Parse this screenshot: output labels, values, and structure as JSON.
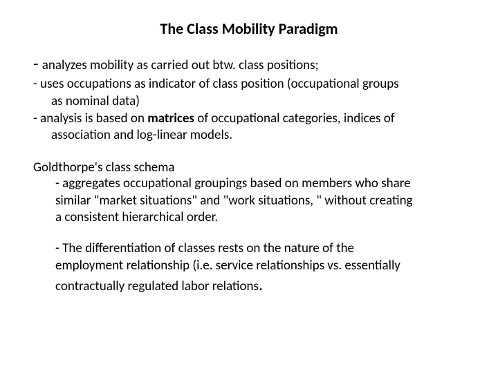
{
  "title": "The Class Mobility Paradigm",
  "point1_pre": "- ",
  "point1": "analyzes mobility as carried out btw. class positions;",
  "point2_line1": "- uses occupations as indicator of class position (occupational groups",
  "point2_line2": "as nominal data)",
  "point3_line1_pre": "- analysis is based on ",
  "point3_line1_bold": "matrices",
  "point3_line1_post": " of occupational categories, indices of",
  "point3_line2": "association and log-linear models.",
  "schema_title": "Goldthorpe's class schema",
  "schema1_line1": "- aggregates occupational groupings based on members who share",
  "schema1_line2": "similar \"market situations\" and \"work situations, \" without creating",
  "schema1_line3": "a consistent hierarchical order.",
  "schema2_line1": "- The differentiation of classes rests on the nature of the",
  "schema2_line2": "employment relationship (i.e. service relationships vs. essentially",
  "schema2_line3_pre": "contractually regulated labor relations",
  "schema2_line3_period": ".",
  "colors": {
    "background": "#ffffff",
    "text": "#000000"
  },
  "fontsize": {
    "title": 22,
    "body": 19
  }
}
